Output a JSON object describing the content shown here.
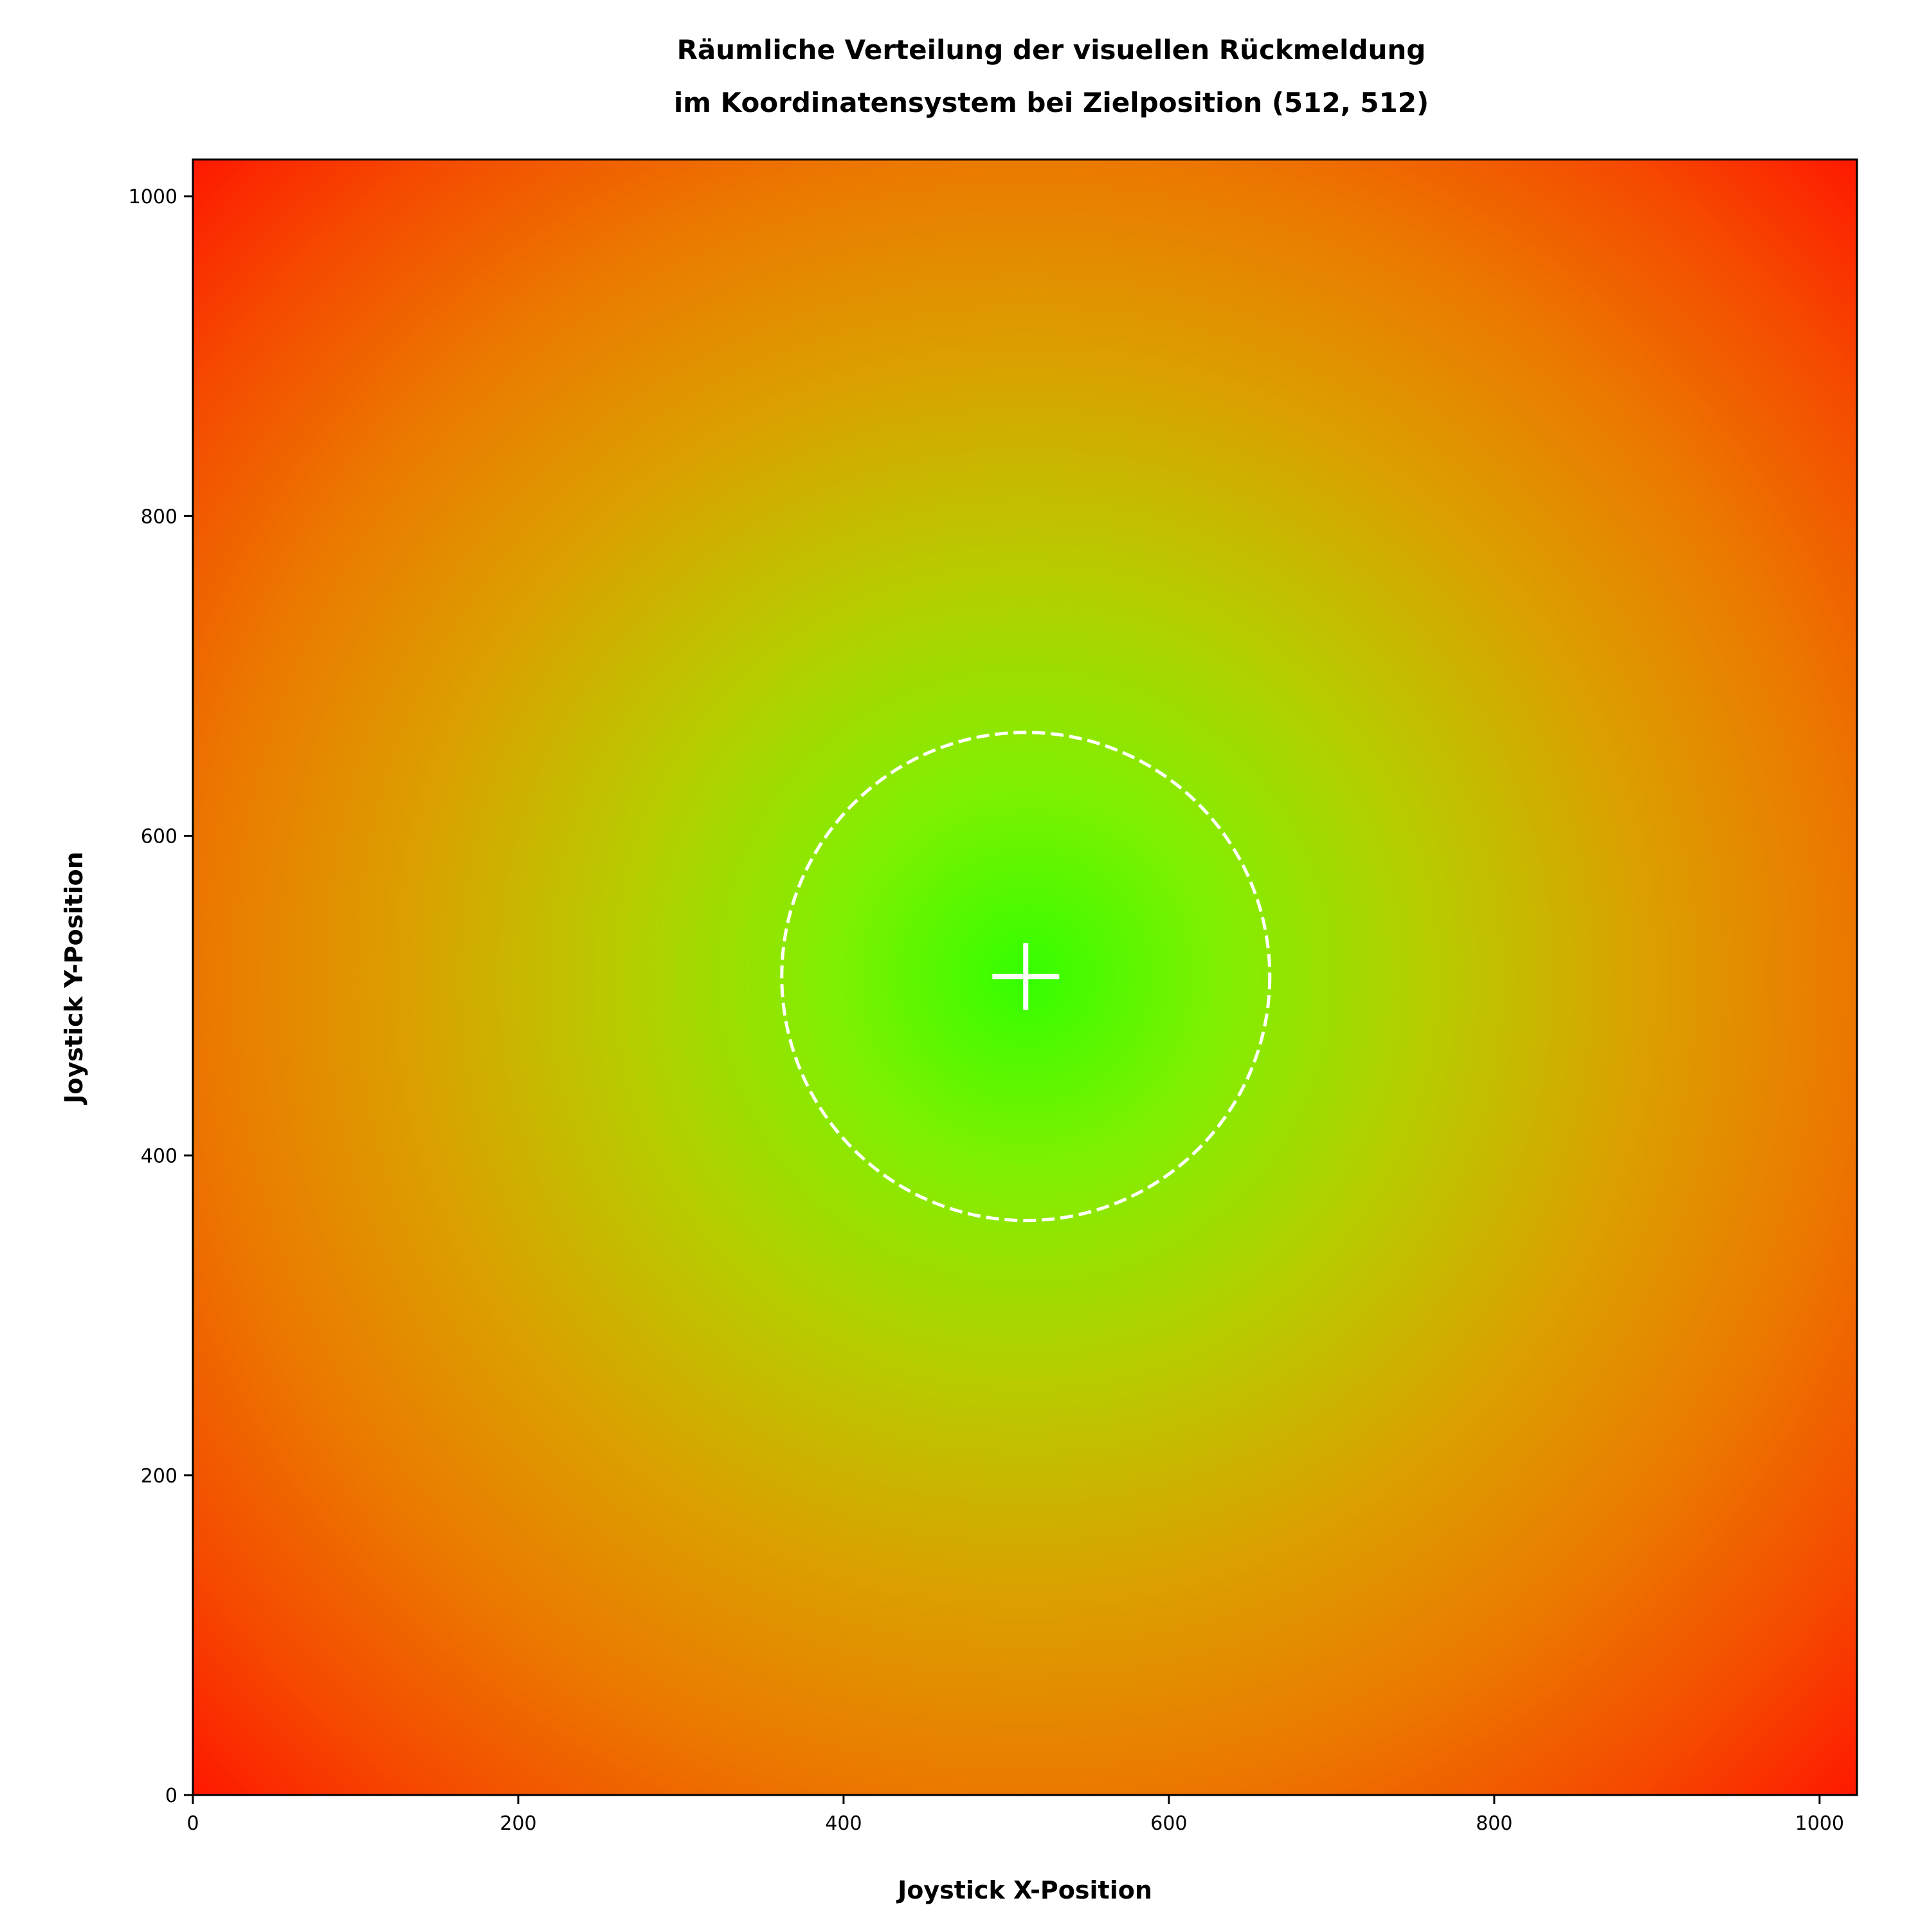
{
  "chart_data": {
    "type": "heatmap",
    "title_lines": [
      "Räumliche Verteilung der visuellen Rückmeldung",
      "im Koordinatensystem bei Zielposition (512, 512)"
    ],
    "xlabel": "Joystick X-Position",
    "ylabel": "Joystick Y-Position",
    "xlim": [
      0,
      1023
    ],
    "ylim": [
      0,
      1023
    ],
    "xticks": [
      0,
      200,
      400,
      600,
      800,
      1000
    ],
    "yticks": [
      0,
      200,
      400,
      600,
      800,
      1000
    ],
    "grid": false,
    "target": {
      "x": 512,
      "y": 512,
      "marker": "plus",
      "color": "#ffffff"
    },
    "target_circle": {
      "cx": 512,
      "cy": 512,
      "r": 150,
      "style": "dashed",
      "color": "#ffffff"
    },
    "colormap": {
      "description_stops": [
        {
          "distance": 0,
          "color": "#33ff00"
        },
        {
          "distance": 120,
          "color": "#80f000"
        },
        {
          "distance": 250,
          "color": "#b8cc00"
        },
        {
          "distance": 380,
          "color": "#dba000"
        },
        {
          "distance": 500,
          "color": "#eb7a00"
        },
        {
          "distance": 620,
          "color": "#f54a00"
        },
        {
          "distance": 724,
          "color": "#ff1500"
        }
      ]
    }
  }
}
